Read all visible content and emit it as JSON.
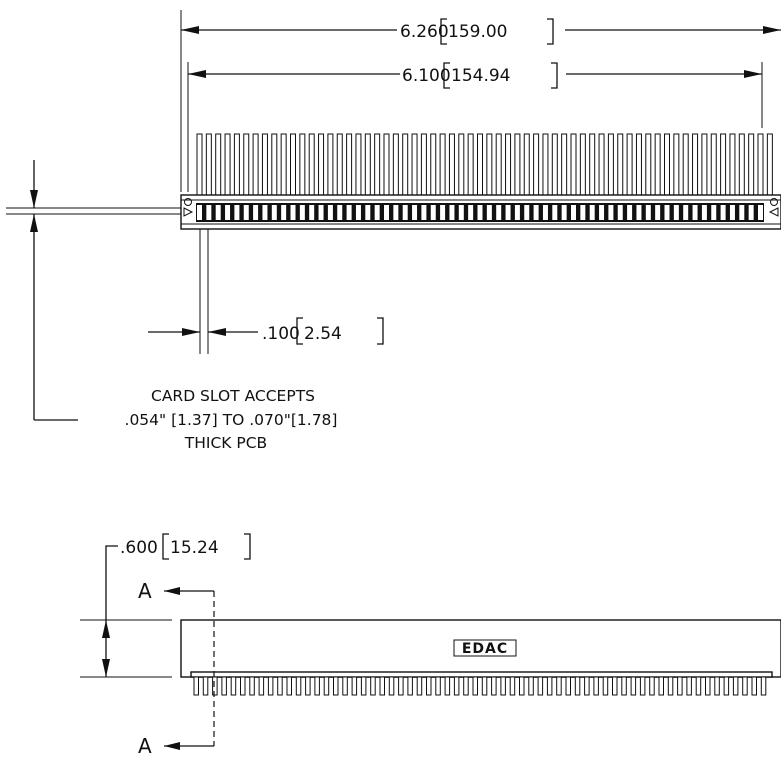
{
  "dimensions": {
    "overall_length": "6.260",
    "overall_length_mm": "159.00",
    "pin_span": "6.100",
    "pin_span_mm": "154.94",
    "pitch": ".100",
    "pitch_mm": "2.54",
    "height": ".600",
    "height_mm": "15.24"
  },
  "note": {
    "line1": "CARD SLOT ACCEPTS",
    "line2": ".054\" [1.37] TO .070\"[1.78]",
    "line3": "THICK PCB"
  },
  "section": {
    "label_top": "A",
    "label_bottom": "A"
  },
  "logo": "EDAC",
  "colors": {
    "line": "#111111",
    "background": "#ffffff"
  }
}
